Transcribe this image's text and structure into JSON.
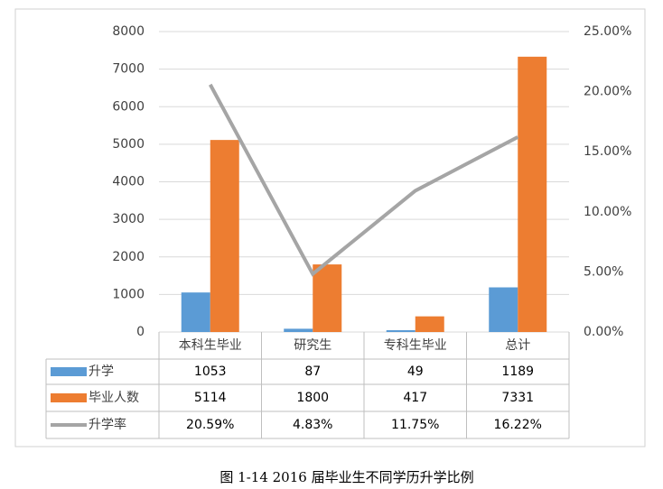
{
  "chart_data": {
    "type": "bar",
    "categories": [
      "本科生毕业",
      "研究生",
      "专科生毕业",
      "总计"
    ],
    "series": [
      {
        "name": "升学",
        "color": "#5b9bd5",
        "values": [
          1053,
          87,
          49,
          1189
        ]
      },
      {
        "name": "毕业人数",
        "color": "#ed7d31",
        "values": [
          5114,
          1800,
          417,
          7331
        ]
      },
      {
        "name": "升学率",
        "color": "#a5a5a5",
        "type": "line",
        "axis": "y2",
        "values": [
          20.59,
          4.83,
          11.75,
          16.22
        ],
        "value_labels": [
          "20.59%",
          "4.83%",
          "11.75%",
          "16.22%"
        ]
      }
    ],
    "ylim": [
      0,
      8000
    ],
    "yticks": [
      0,
      1000,
      2000,
      3000,
      4000,
      5000,
      6000,
      7000,
      8000
    ],
    "y2lim": [
      0,
      25
    ],
    "y2ticks": [
      {
        "value": 0,
        "label": "0.00%"
      },
      {
        "value": 5,
        "label": "5.00%"
      },
      {
        "value": 10,
        "label": "10.00%"
      },
      {
        "value": 15,
        "label": "15.00%"
      },
      {
        "value": 20,
        "label": "20.00%"
      },
      {
        "value": 25,
        "label": "25.00%"
      }
    ],
    "grid": true,
    "caption": "图 1-14 2016 届毕业生不同学历升学比例"
  }
}
